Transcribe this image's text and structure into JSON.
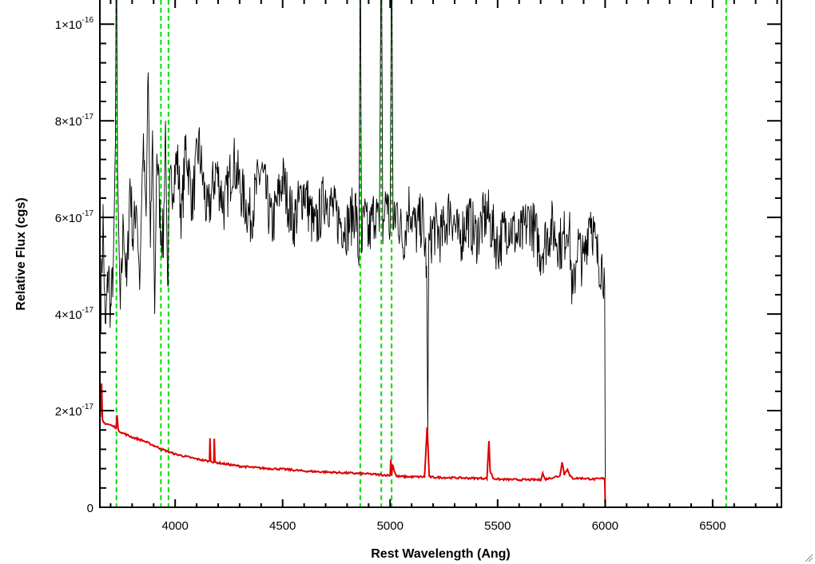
{
  "chart_data": {
    "type": "line",
    "title": "",
    "xlabel": "Rest Wavelength (Ang)",
    "ylabel": "Relative Flux (cgs)",
    "xlim": [
      3650,
      6820
    ],
    "ylim": [
      0,
      1.05e-16
    ],
    "x_ticks": [
      4000,
      4500,
      5000,
      5500,
      6000,
      6500
    ],
    "y_ticks": [
      {
        "value": 0,
        "mantissa": "0",
        "exponent": ""
      },
      {
        "value": 2e-17,
        "mantissa": "2×10",
        "exponent": "-17"
      },
      {
        "value": 4e-17,
        "mantissa": "4×10",
        "exponent": "-17"
      },
      {
        "value": 6e-17,
        "mantissa": "6×10",
        "exponent": "-17"
      },
      {
        "value": 8e-17,
        "mantissa": "8×10",
        "exponent": "-17"
      },
      {
        "value": 1e-16,
        "mantissa": "1×10",
        "exponent": "-16"
      }
    ],
    "reference_lines": {
      "color": "#00e000",
      "style": "dashed",
      "x": [
        3727,
        3934,
        3969,
        4861,
        4959,
        5007,
        6563
      ]
    },
    "series": [
      {
        "color": "#000000",
        "x": [
          3655,
          3665,
          3675,
          3690,
          3700,
          3715,
          3722,
          3727,
          3732,
          3745,
          3760,
          3775,
          3790,
          3805,
          3820,
          3835,
          3850,
          3865,
          3875,
          3885,
          3895,
          3905,
          3915,
          3930,
          3945,
          3955,
          3965,
          3975,
          3990,
          4010,
          4030,
          4050,
          4080,
          4110,
          4150,
          4190,
          4230,
          4270,
          4310,
          4350,
          4400,
          4450,
          4500,
          4550,
          4600,
          4650,
          4700,
          4750,
          4800,
          4840,
          4855,
          4861,
          4867,
          4880,
          4900,
          4930,
          4950,
          4959,
          4966,
          4985,
          5000,
          5007,
          5014,
          5030,
          5060,
          5090,
          5120,
          5150,
          5170,
          5175,
          5180,
          5200,
          5240,
          5280,
          5320,
          5360,
          5400,
          5450,
          5500,
          5550,
          5600,
          5650,
          5700,
          5750,
          5800,
          5830,
          5850,
          5870,
          5900,
          5930,
          5960,
          5990,
          5998,
          6001,
          6005,
          6820
        ],
        "y": [
          4.2e-17,
          6e-17,
          3.5e-17,
          5e-17,
          4e-17,
          5.2e-17,
          7.5e-17,
          1.2e-16,
          7e-17,
          4e-17,
          6e-17,
          4.5e-17,
          6.8e-17,
          5.5e-17,
          6.5e-17,
          4.5e-17,
          7.5e-17,
          6e-17,
          9e-17,
          5.5e-17,
          7.8e-17,
          4e-17,
          7.5e-17,
          6e-17,
          5.5e-17,
          8e-17,
          4.5e-17,
          6.5e-17,
          6.8e-17,
          7.2e-17,
          6e-17,
          7.5e-17,
          6.3e-17,
          7.5e-17,
          6e-17,
          7e-17,
          6.2e-17,
          7.2e-17,
          6.5e-17,
          6e-17,
          7e-17,
          5.8e-17,
          6.8e-17,
          5.9e-17,
          6.6e-17,
          5.7e-17,
          6.5e-17,
          6e-17,
          5.8e-17,
          6.2e-17,
          5e-17,
          1.2e-16,
          5.5e-17,
          6e-17,
          5.6e-17,
          6.2e-17,
          5.7e-17,
          1.2e-16,
          5.8e-17,
          6.5e-17,
          5.7e-17,
          1.2e-16,
          5.6e-17,
          6.2e-17,
          5.5e-17,
          6.3e-17,
          5.7e-17,
          6e-17,
          5e-17,
          1.5e-17,
          5.3e-17,
          5.8e-17,
          5.6e-17,
          6.2e-17,
          5.5e-17,
          6e-17,
          5.6e-17,
          6.1e-17,
          5.4e-17,
          5.9e-17,
          5.5e-17,
          6e-17,
          5.3e-17,
          5.8e-17,
          5.4e-17,
          6e-17,
          4.2e-17,
          5.5e-17,
          5e-17,
          6.2e-17,
          5.2e-17,
          5e-17,
          4.6e-17,
          0,
          0,
          0
        ]
      },
      {
        "color": "#dd0000",
        "x": [
          3652,
          3658,
          3662,
          3668,
          3700,
          3725,
          3730,
          3735,
          3750,
          3800,
          3850,
          3900,
          3950,
          4000,
          4100,
          4160,
          4162,
          4165,
          4180,
          4182,
          4185,
          4200,
          4300,
          4400,
          4500,
          4600,
          4700,
          4800,
          4900,
          5000,
          5003,
          5007,
          5012,
          5020,
          5030,
          5100,
          5160,
          5172,
          5176,
          5182,
          5200,
          5300,
          5400,
          5450,
          5460,
          5465,
          5480,
          5500,
          5600,
          5700,
          5710,
          5720,
          5790,
          5800,
          5810,
          5825,
          5835,
          5850,
          5900,
          5950,
          5998,
          6001,
          6005,
          6820
        ],
        "y": [
          1.85e-17,
          2.55e-17,
          1.8e-17,
          1.75e-17,
          1.7e-17,
          1.65e-17,
          1.9e-17,
          1.6e-17,
          1.55e-17,
          1.45e-17,
          1.38e-17,
          1.28e-17,
          1.18e-17,
          1.1e-17,
          1e-17,
          9.5e-18,
          1.45e-17,
          9.5e-18,
          9.4e-18,
          1.42e-17,
          9.3e-18,
          9.2e-18,
          8.5e-18,
          8.1e-18,
          7.9e-18,
          7.5e-18,
          7.3e-18,
          7.1e-18,
          6.9e-18,
          6.6e-18,
          9.8e-18,
          6.8e-18,
          8.8e-18,
          7.5e-18,
          6.4e-18,
          6.3e-18,
          6.3e-18,
          1.65e-17,
          1.3e-17,
          6.3e-18,
          6.2e-18,
          6.1e-18,
          6e-18,
          6e-18,
          1.38e-17,
          7.5e-18,
          6e-18,
          5.8e-18,
          5.7e-18,
          5.7e-18,
          7e-18,
          5.8e-18,
          6.5e-18,
          9.5e-18,
          6.8e-18,
          8e-18,
          6.5e-18,
          6e-18,
          6e-18,
          5.8e-18,
          6e-18,
          0,
          0,
          0
        ]
      }
    ]
  }
}
